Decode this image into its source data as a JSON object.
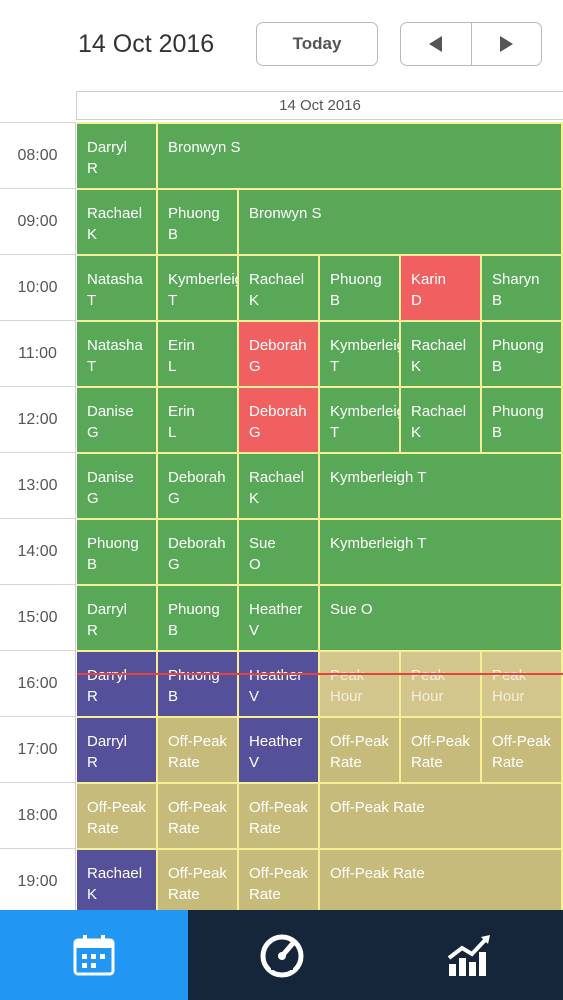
{
  "header": {
    "date_title": "14 Oct 2016",
    "today_label": "Today",
    "column_date": "14 Oct 2016"
  },
  "times": [
    "08:00",
    "09:00",
    "10:00",
    "11:00",
    "12:00",
    "13:00",
    "14:00",
    "15:00",
    "16:00",
    "17:00",
    "18:00",
    "19:00"
  ],
  "colors": {
    "booked": "#58a858",
    "cancelled": "#f06060",
    "past_peak": "#55509a",
    "off_peak": "#c7bb7c",
    "peak": "#d2c68d",
    "active_tab": "#2196f3",
    "nav_bg": "#15253a",
    "now_line": "#e6443a"
  },
  "schedule": [
    [
      {
        "t": "Darryl\nR",
        "c": "green"
      },
      {
        "t": "Bronwyn S",
        "c": "green",
        "s": 5
      }
    ],
    [
      {
        "t": "Rachael\nK",
        "c": "green"
      },
      {
        "t": "Phuong\nB",
        "c": "green"
      },
      {
        "t": "Bronwyn S",
        "c": "green",
        "s": 4
      }
    ],
    [
      {
        "t": "Natasha\nT",
        "c": "green"
      },
      {
        "t": "Kymberleigh\nT",
        "c": "green"
      },
      {
        "t": "Rachael\nK",
        "c": "green"
      },
      {
        "t": "Phuong\nB",
        "c": "green"
      },
      {
        "t": "Karin\nD",
        "c": "red"
      },
      {
        "t": "Sharyn\nB",
        "c": "green"
      }
    ],
    [
      {
        "t": "Natasha\nT",
        "c": "green"
      },
      {
        "t": "Erin\nL",
        "c": "green"
      },
      {
        "t": "Deborah\nG",
        "c": "red"
      },
      {
        "t": "Kymberleigh\nT",
        "c": "green"
      },
      {
        "t": "Rachael\nK",
        "c": "green"
      },
      {
        "t": "Phuong\nB",
        "c": "green"
      }
    ],
    [
      {
        "t": "Danise\nG",
        "c": "green"
      },
      {
        "t": "Erin\nL",
        "c": "green"
      },
      {
        "t": "Deborah\nG",
        "c": "red"
      },
      {
        "t": "Kymberleigh\nT",
        "c": "green"
      },
      {
        "t": "Rachael\nK",
        "c": "green"
      },
      {
        "t": "Phuong\nB",
        "c": "green"
      }
    ],
    [
      {
        "t": "Danise\nG",
        "c": "green"
      },
      {
        "t": "Deborah\nG",
        "c": "green"
      },
      {
        "t": "Rachael\nK",
        "c": "green"
      },
      {
        "t": "Kymberleigh T",
        "c": "green",
        "s": 3
      }
    ],
    [
      {
        "t": "Phuong\nB",
        "c": "green"
      },
      {
        "t": "Deborah\nG",
        "c": "green"
      },
      {
        "t": "Sue\nO",
        "c": "green"
      },
      {
        "t": "Kymberleigh T",
        "c": "green",
        "s": 3
      }
    ],
    [
      {
        "t": "Darryl\nR",
        "c": "green"
      },
      {
        "t": "Phuong\nB",
        "c": "green"
      },
      {
        "t": "Heather\nV",
        "c": "green"
      },
      {
        "t": "Sue O",
        "c": "green",
        "s": 3
      }
    ],
    [
      {
        "t": "Darryl\nR",
        "c": "purple"
      },
      {
        "t": "Phuong\nB",
        "c": "purple"
      },
      {
        "t": "Heather\nV",
        "c": "purple"
      },
      {
        "t": "Peak\nHour",
        "c": "peak"
      },
      {
        "t": "Peak\nHour",
        "c": "peak"
      },
      {
        "t": "Peak\nHour",
        "c": "peak"
      }
    ],
    [
      {
        "t": "Darryl\nR",
        "c": "purple"
      },
      {
        "t": "Off-Peak\nRate",
        "c": "tan"
      },
      {
        "t": "Heather\nV",
        "c": "purple"
      },
      {
        "t": "Off-Peak\nRate",
        "c": "tan"
      },
      {
        "t": "Off-Peak\nRate",
        "c": "tan"
      },
      {
        "t": "Off-Peak\nRate",
        "c": "tan"
      }
    ],
    [
      {
        "t": "Off-Peak\nRate",
        "c": "tan"
      },
      {
        "t": "Off-Peak\nRate",
        "c": "tan"
      },
      {
        "t": "Off-Peak\nRate",
        "c": "tan"
      },
      {
        "t": "Off-Peak Rate",
        "c": "tan",
        "s": 3
      }
    ],
    [
      {
        "t": "Rachael\nK",
        "c": "purple"
      },
      {
        "t": "Off-Peak\nRate",
        "c": "tan"
      },
      {
        "t": "Off-Peak\nRate",
        "c": "tan"
      },
      {
        "t": "Off-Peak Rate",
        "c": "tan",
        "s": 3
      }
    ]
  ],
  "now_position": {
    "hour_index": 8,
    "fraction": 0.35
  },
  "bottom_nav": [
    {
      "icon": "calendar-icon",
      "active": true
    },
    {
      "icon": "speedometer-icon",
      "active": false
    },
    {
      "icon": "chart-icon",
      "active": false
    }
  ]
}
